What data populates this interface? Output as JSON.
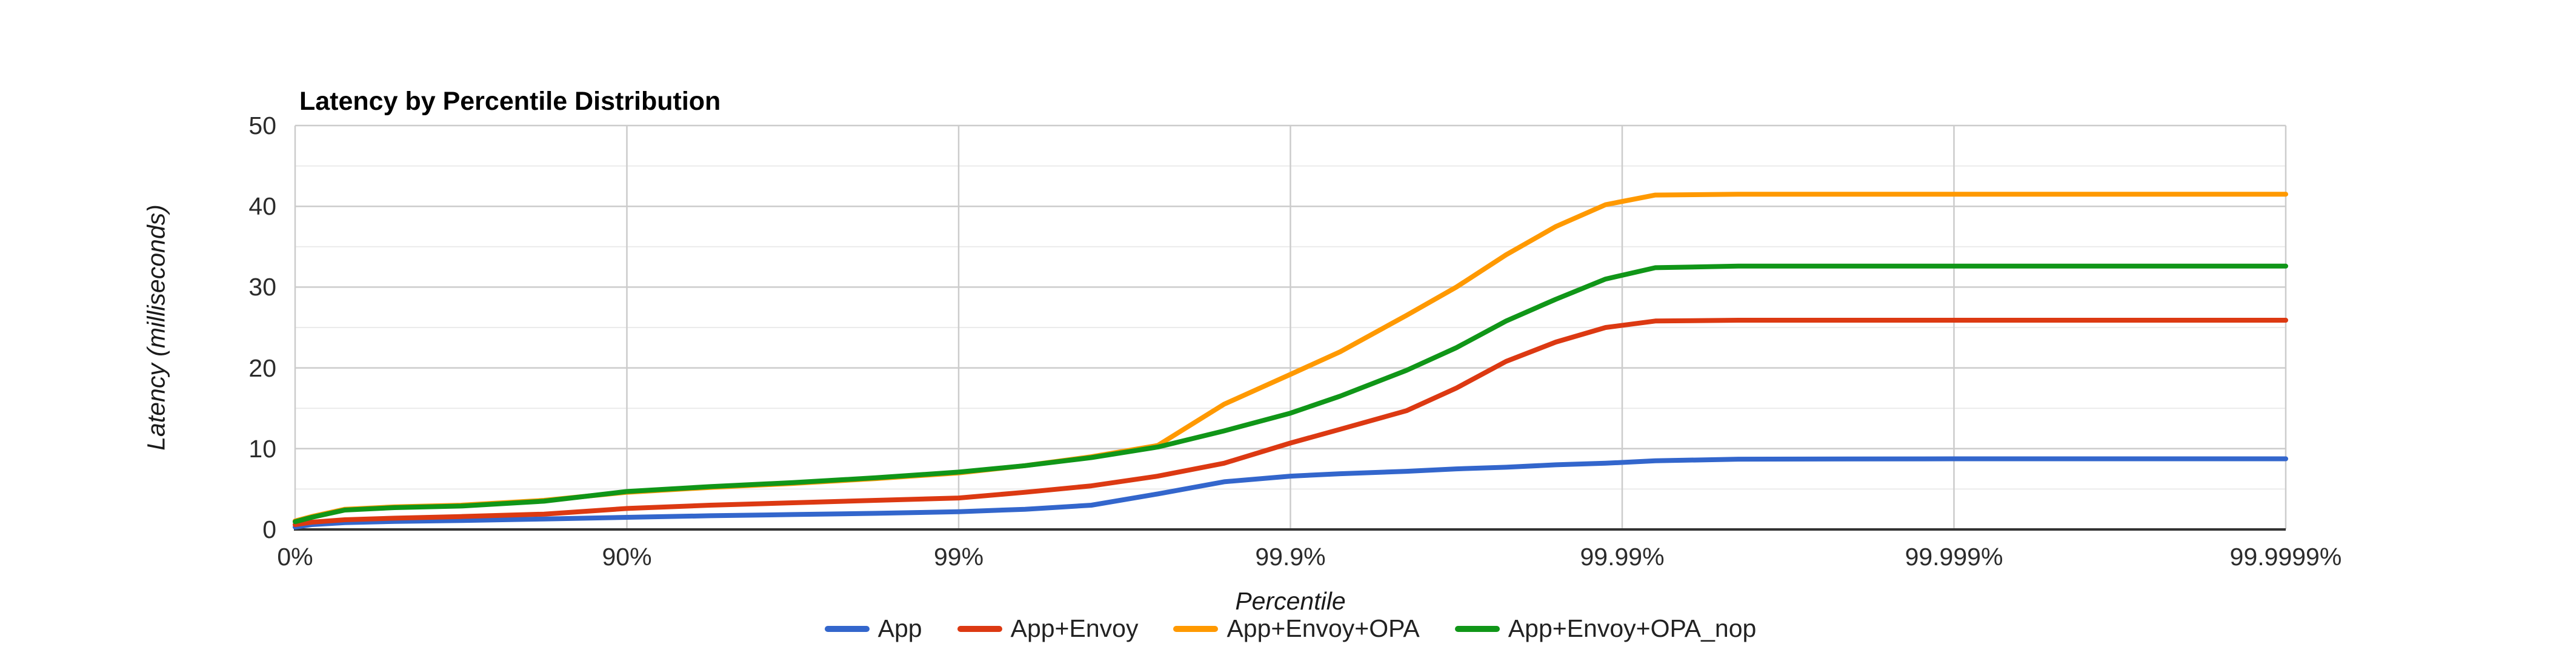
{
  "chart_data": {
    "type": "line",
    "title": "Latency by Percentile Distribution",
    "xlabel": "Percentile",
    "ylabel": "Latency (milliseconds)",
    "x_axis_scale": "log-percentile (1/(1-p)), major ticks equally spaced",
    "x_ticks": [
      "0%",
      "90%",
      "99%",
      "99.9%",
      "99.99%",
      "99.999%",
      "99.9999%"
    ],
    "x_tick_decades": [
      0,
      1,
      2,
      3,
      4,
      5,
      6
    ],
    "y_ticks": [
      0,
      10,
      20,
      30,
      40,
      50
    ],
    "y_minor_ticks": [
      5,
      15,
      25,
      35,
      45
    ],
    "ylim": [
      0,
      50
    ],
    "grid": {
      "major": "#cccccc",
      "minor": "#ebebeb",
      "baseline": "#333333"
    },
    "legend_position": "bottom",
    "x_decades": [
      0,
      0.05,
      0.15,
      0.3,
      0.5,
      0.75,
      1,
      1.25,
      1.5,
      1.75,
      2,
      2.2,
      2.4,
      2.6,
      2.8,
      3,
      3.15,
      3.35,
      3.5,
      3.65,
      3.8,
      3.95,
      4.1,
      4.35,
      5,
      6
    ],
    "series": [
      {
        "name": "App",
        "color": "#3366cc",
        "plateau_ms": 8.75,
        "values": [
          0.3,
          0.6,
          0.85,
          1.0,
          1.1,
          1.3,
          1.5,
          1.7,
          1.85,
          2.0,
          2.2,
          2.5,
          3.0,
          4.4,
          5.9,
          6.6,
          6.9,
          7.2,
          7.5,
          7.7,
          8.0,
          8.2,
          8.5,
          8.7,
          8.75,
          8.75
        ]
      },
      {
        "name": "App+Envoy",
        "color": "#dc3912",
        "plateau_ms": 25.9,
        "values": [
          0.6,
          0.9,
          1.2,
          1.4,
          1.6,
          1.9,
          2.6,
          3.0,
          3.3,
          3.6,
          3.9,
          4.6,
          5.4,
          6.6,
          8.2,
          10.7,
          12.4,
          14.7,
          17.5,
          20.8,
          23.2,
          25.0,
          25.8,
          25.9,
          25.9,
          25.9
        ]
      },
      {
        "name": "App+Envoy+OPA",
        "color": "#ff9900",
        "plateau_ms": 41.5,
        "values": [
          1.05,
          1.6,
          2.5,
          2.8,
          3.0,
          3.6,
          4.6,
          5.2,
          5.7,
          6.3,
          7.0,
          7.9,
          9.0,
          10.4,
          15.5,
          19.2,
          22.0,
          26.5,
          30.0,
          34.0,
          37.5,
          40.2,
          41.4,
          41.5,
          41.5,
          41.5
        ]
      },
      {
        "name": "App+Envoy+OPA_nop",
        "color": "#109618",
        "plateau_ms": 32.6,
        "values": [
          0.95,
          1.5,
          2.4,
          2.7,
          2.9,
          3.5,
          4.7,
          5.3,
          5.8,
          6.4,
          7.1,
          7.9,
          8.9,
          10.2,
          12.2,
          14.4,
          16.5,
          19.7,
          22.5,
          25.8,
          28.5,
          31.0,
          32.4,
          32.6,
          32.6,
          32.6
        ]
      }
    ]
  }
}
